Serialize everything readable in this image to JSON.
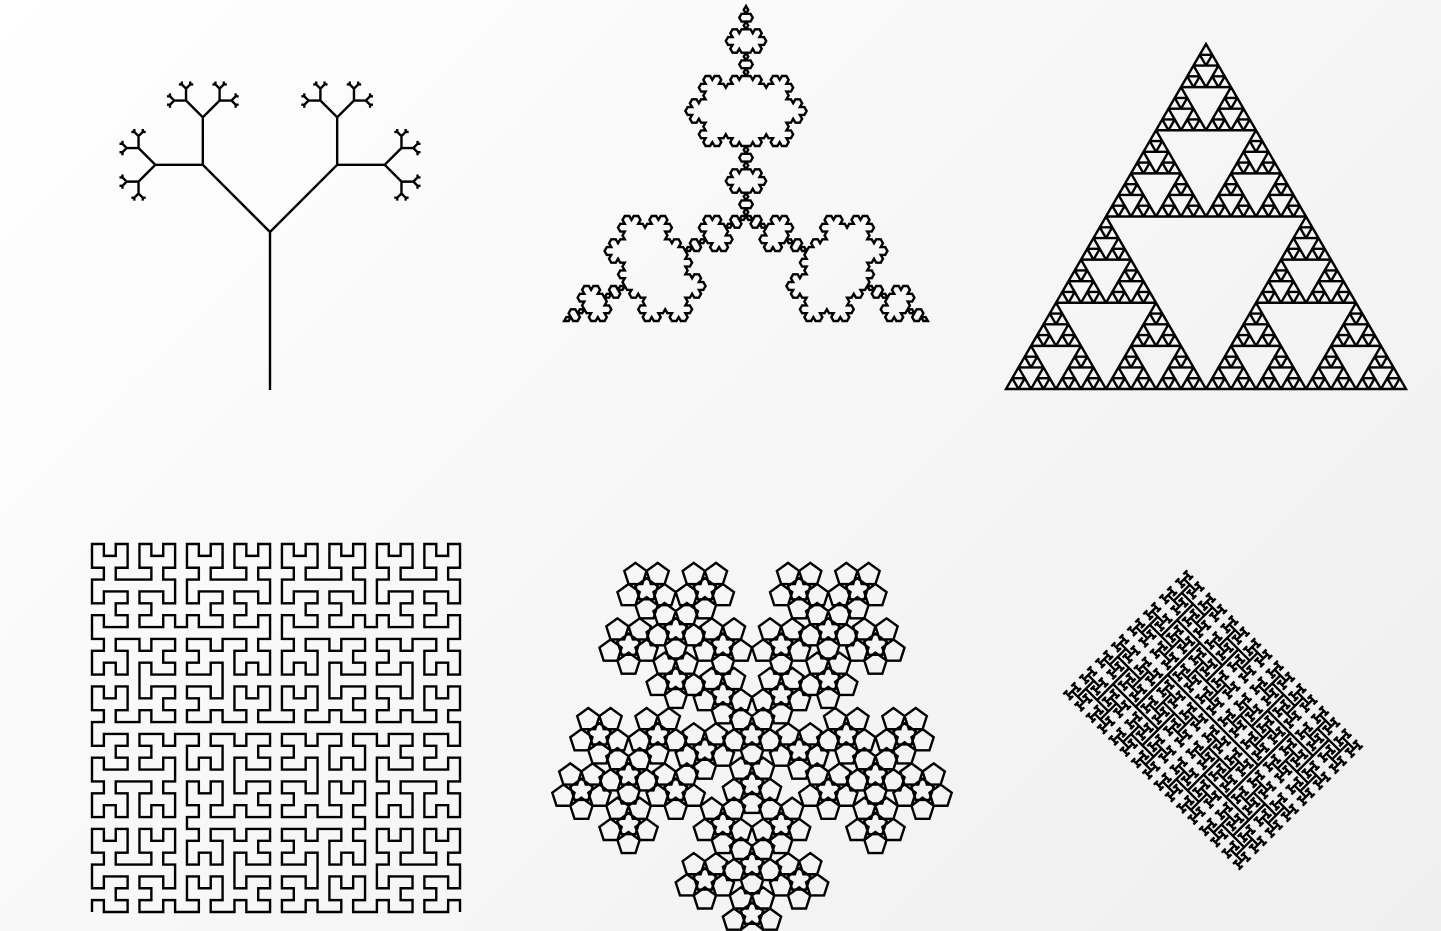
{
  "colors": {
    "background": "#f6f6f6",
    "stroke": "#000000"
  },
  "fractals": [
    {
      "name": "fractal-tree",
      "depth": 7,
      "branch_angle_deg": 45,
      "length_ratio": 0.5
    },
    {
      "name": "koch-snowflake",
      "depth": 4
    },
    {
      "name": "sierpinski-triangle",
      "depth": 5
    },
    {
      "name": "hilbert-curve",
      "order": 5
    },
    {
      "name": "pentaflake",
      "depth": 3
    },
    {
      "name": "h-tree",
      "depth": 10
    }
  ]
}
